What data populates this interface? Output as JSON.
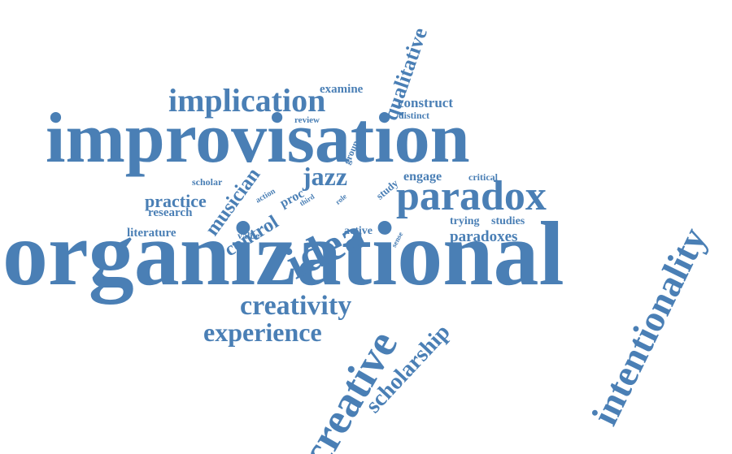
{
  "colors": {
    "word": "#4a7fb5",
    "background": "#ffffff"
  },
  "words": [
    "improvisation",
    "organizational",
    "intentionality",
    "creative",
    "scholarship",
    "qualitative",
    "idea",
    "paradox",
    "implication",
    "creativity",
    "experience",
    "jazz",
    "musician",
    "control",
    "practice",
    "paradoxes",
    "examine",
    "construct",
    "distinct",
    "review",
    "group",
    "study",
    "engage",
    "critical",
    "scholar",
    "action",
    "proc",
    "third",
    "role",
    "research",
    "literature",
    "value",
    "active",
    "sense",
    "trying",
    "studies"
  ]
}
